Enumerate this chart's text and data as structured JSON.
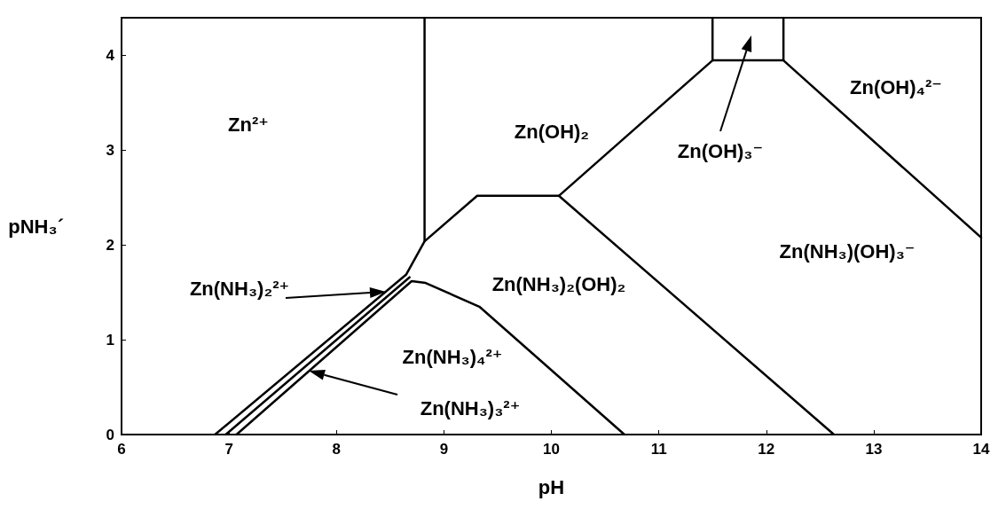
{
  "chart_data": {
    "type": "line",
    "xlabel": "pH",
    "ylabel": "pNH₃´",
    "xlim": [
      6,
      14
    ],
    "xticks": [
      6,
      7,
      8,
      9,
      10,
      11,
      12,
      13,
      14
    ],
    "ylim": [
      0,
      4.4
    ],
    "yticks": [
      0,
      1,
      2,
      3,
      4
    ],
    "grid": false,
    "marker": "none",
    "line_style": "solid",
    "series": [
      {
        "color": "#000000",
        "x": [
          6.87,
          8.65,
          8.82,
          9.31,
          10.07,
          11.5,
          12.16,
          14
        ],
        "values": [
          0,
          1.69,
          2.04,
          2.52,
          2.52,
          3.95,
          3.95,
          2.08
        ]
      },
      {
        "color": "#000000",
        "x": [
          6.97,
          8.68
        ],
        "values": [
          0,
          1.66
        ]
      },
      {
        "color": "#000000",
        "x": [
          7.07,
          8.7,
          8.83,
          9.33,
          10.68
        ],
        "values": [
          0,
          1.62,
          1.6,
          1.35,
          0
        ]
      },
      {
        "color": "#000000",
        "x": [
          10.07,
          12.63
        ],
        "values": [
          2.52,
          0
        ]
      },
      {
        "color": "#000000",
        "x": [
          8.82,
          8.82
        ],
        "values": [
          2.04,
          4.4
        ]
      },
      {
        "color": "#000000",
        "x": [
          11.5,
          11.5
        ],
        "values": [
          3.95,
          4.4
        ]
      },
      {
        "color": "#000000",
        "x": [
          12.16,
          12.16
        ],
        "values": [
          3.95,
          4.4
        ]
      }
    ],
    "annotations": [
      "Zn²⁺",
      "Zn(OH)₂",
      "Zn(OH)₄²⁻",
      "Zn(OH)₃⁻",
      "Zn(NH₃)(OH)₃⁻",
      "Zn(NH₃)₂²⁺",
      "Zn(NH₃)₂(OH)₂",
      "Zn(NH₃)₄²⁺",
      "Zn(NH₃)₃²⁺"
    ]
  }
}
